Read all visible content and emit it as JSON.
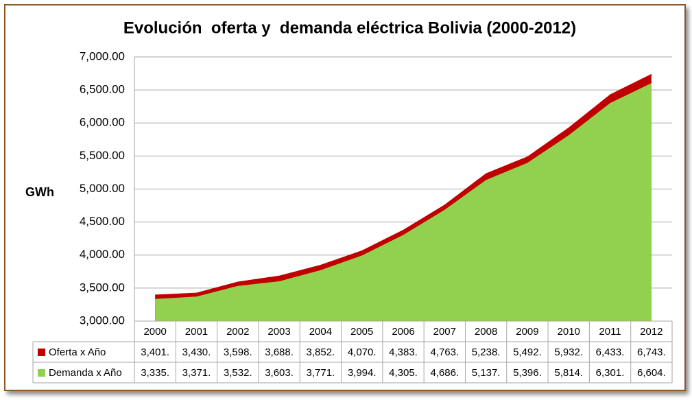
{
  "chart_data": {
    "type": "area",
    "title": "Evolución  oferta y  demanda eléctrica Bolivia (2000-2012)",
    "y_label": "GWh",
    "categories": [
      "2000",
      "2001",
      "2002",
      "2003",
      "2004",
      "2005",
      "2006",
      "2007",
      "2008",
      "2009",
      "2010",
      "2011",
      "2012"
    ],
    "series": [
      {
        "name": "Oferta x Año",
        "color": "#c00000",
        "values": [
          3401,
          3430,
          3598,
          3688,
          3852,
          4070,
          4383,
          4763,
          5238,
          5492,
          5932,
          6433,
          6743
        ],
        "value_labels": [
          "3,401.",
          "3,430.",
          "3,598.",
          "3,688.",
          "3,852.",
          "4,070.",
          "4,383.",
          "4,763.",
          "5,238.",
          "5,492.",
          "5,932.",
          "6,433.",
          "6,743."
        ]
      },
      {
        "name": "Demanda x Año",
        "color": "#92d050",
        "values": [
          3335,
          3371,
          3532,
          3603,
          3771,
          3994,
          4305,
          4686,
          5137,
          5396,
          5814,
          6301,
          6604
        ],
        "value_labels": [
          "3,335.",
          "3,371.",
          "3,532.",
          "3,603.",
          "3,771.",
          "3,994.",
          "4,305.",
          "4,686.",
          "5,137.",
          "5,396.",
          "5,814.",
          "6,301.",
          "6,604."
        ]
      }
    ],
    "ylim": [
      3000,
      7000
    ],
    "yticks": [
      {
        "value": 3000,
        "label": "3,000.00"
      },
      {
        "value": 3500,
        "label": "3,500.00"
      },
      {
        "value": 4000,
        "label": "4,000.00"
      },
      {
        "value": 4500,
        "label": "4,500.00"
      },
      {
        "value": 5000,
        "label": "5,000.00"
      },
      {
        "value": 5500,
        "label": "5,500.00"
      },
      {
        "value": 6000,
        "label": "6,000.00"
      },
      {
        "value": 6500,
        "label": "6,500.00"
      },
      {
        "value": 7000,
        "label": "7,000.00"
      }
    ],
    "grid": true
  }
}
